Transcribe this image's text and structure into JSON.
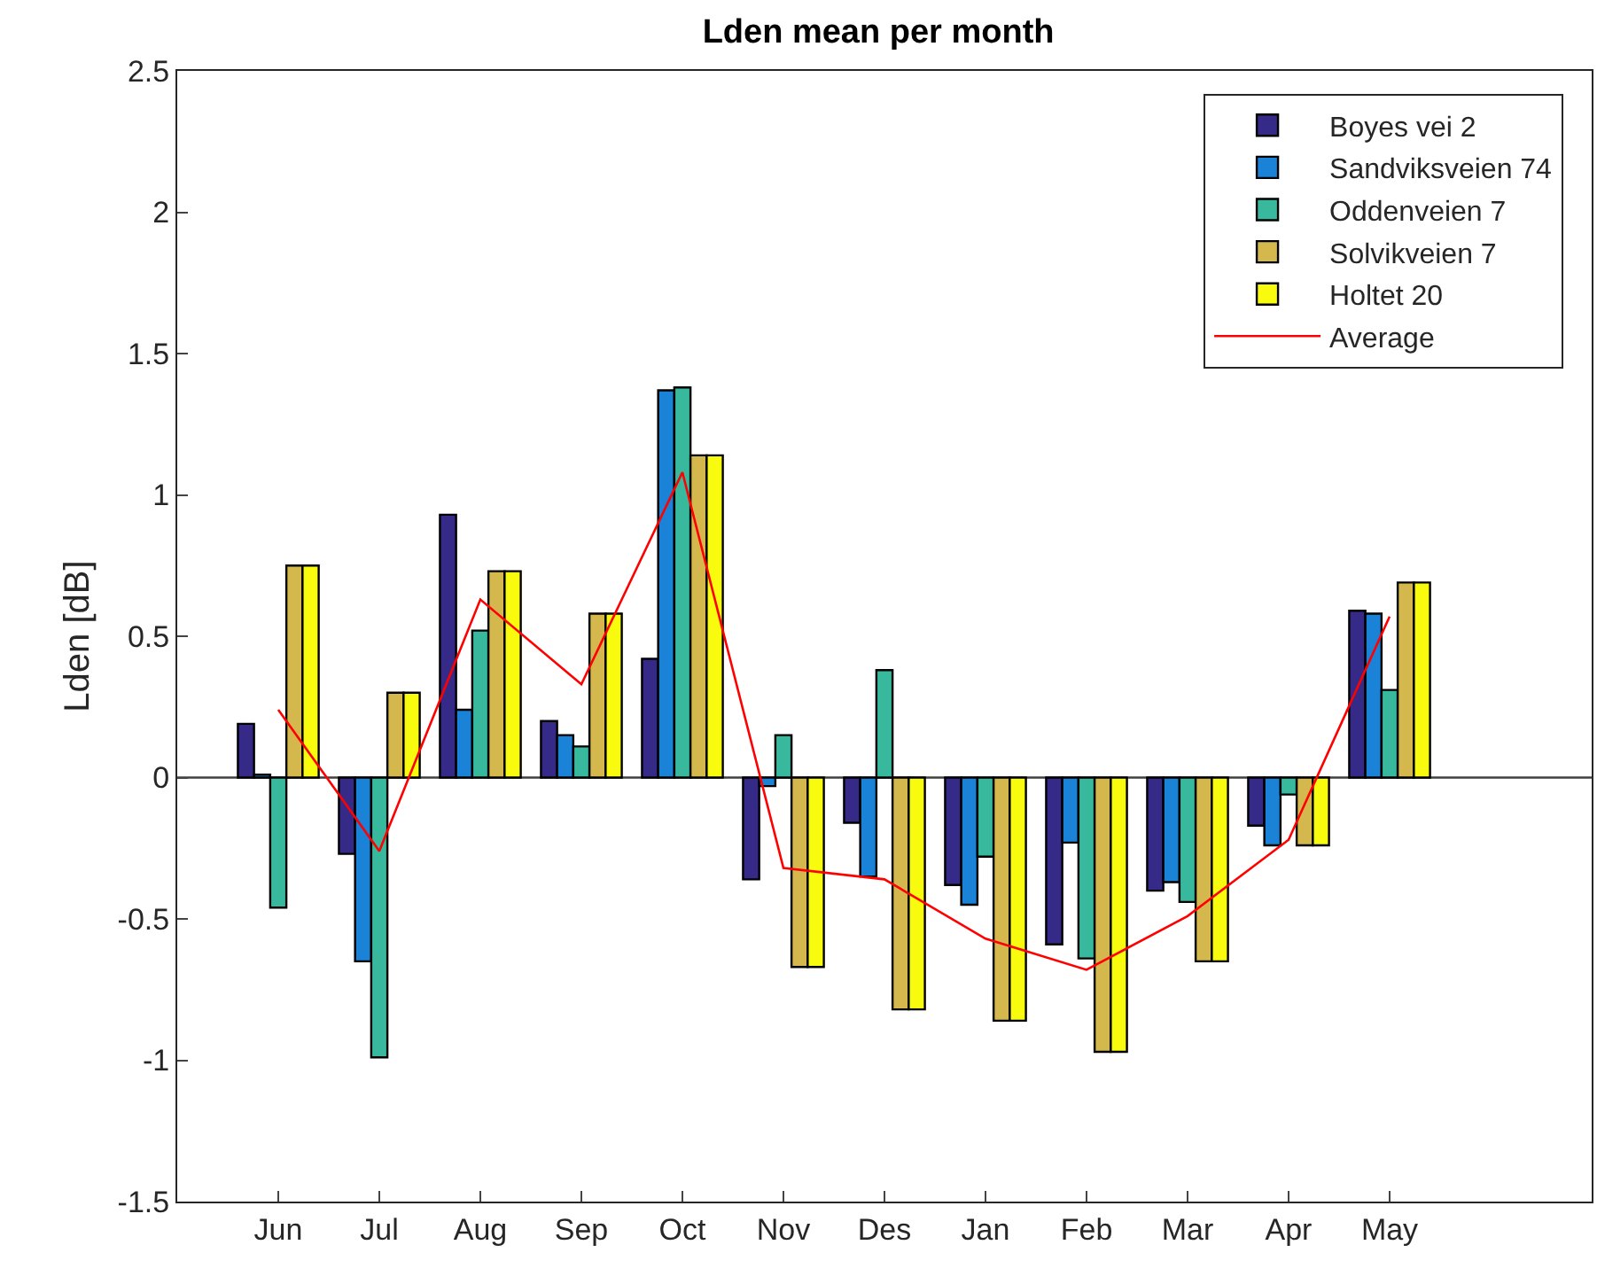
{
  "chart_data": {
    "type": "bar",
    "title": "Lden mean per month",
    "ylabel": "Lden [dB]",
    "categories": [
      "Jun",
      "Jul",
      "Aug",
      "Sep",
      "Oct",
      "Nov",
      "Des",
      "Jan",
      "Feb",
      "Mar",
      "Apr",
      "May"
    ],
    "series": [
      {
        "name": "Boyes vei 2",
        "color": "#352a87",
        "values": [
          0.19,
          -0.27,
          0.93,
          0.2,
          0.42,
          -0.36,
          -0.16,
          -0.38,
          -0.59,
          -0.4,
          -0.17,
          0.59
        ]
      },
      {
        "name": "Sandviksveien 74",
        "color": "#1a82d7",
        "values": [
          0.01,
          -0.65,
          0.24,
          0.15,
          1.37,
          -0.03,
          -0.35,
          -0.45,
          -0.23,
          -0.37,
          -0.24,
          0.58
        ]
      },
      {
        "name": "Oddenveien 7",
        "color": "#38b99e",
        "values": [
          -0.46,
          -0.99,
          0.52,
          0.11,
          1.38,
          0.15,
          0.38,
          -0.28,
          -0.64,
          -0.44,
          -0.06,
          0.31
        ]
      },
      {
        "name": "Solvikveien 7",
        "color": "#d4b84e",
        "values": [
          0.75,
          0.3,
          0.73,
          0.58,
          1.14,
          -0.67,
          -0.82,
          -0.86,
          -0.97,
          -0.65,
          -0.24,
          0.69
        ]
      },
      {
        "name": "Holtet 20",
        "color": "#f9fb0e",
        "values": [
          0.75,
          0.3,
          0.73,
          0.58,
          1.14,
          -0.67,
          -0.82,
          -0.86,
          -0.97,
          -0.65,
          -0.24,
          0.69
        ]
      },
      {
        "name": "Average",
        "type": "line",
        "color": "#ff0000",
        "values": [
          0.24,
          -0.26,
          0.63,
          0.33,
          1.08,
          -0.32,
          -0.36,
          -0.57,
          -0.68,
          -0.49,
          -0.22,
          0.57
        ]
      }
    ],
    "ylim": [
      -1.5,
      2.5
    ],
    "yticks": [
      -1.5,
      -1,
      -0.5,
      0,
      0.5,
      1,
      1.5,
      2,
      2.5
    ],
    "ref_lines": [
      {
        "axis": "y",
        "value": 0,
        "color": "#404040"
      }
    ],
    "grid": false,
    "legend": "top right",
    "marker": "none",
    "line_style": "solid"
  }
}
